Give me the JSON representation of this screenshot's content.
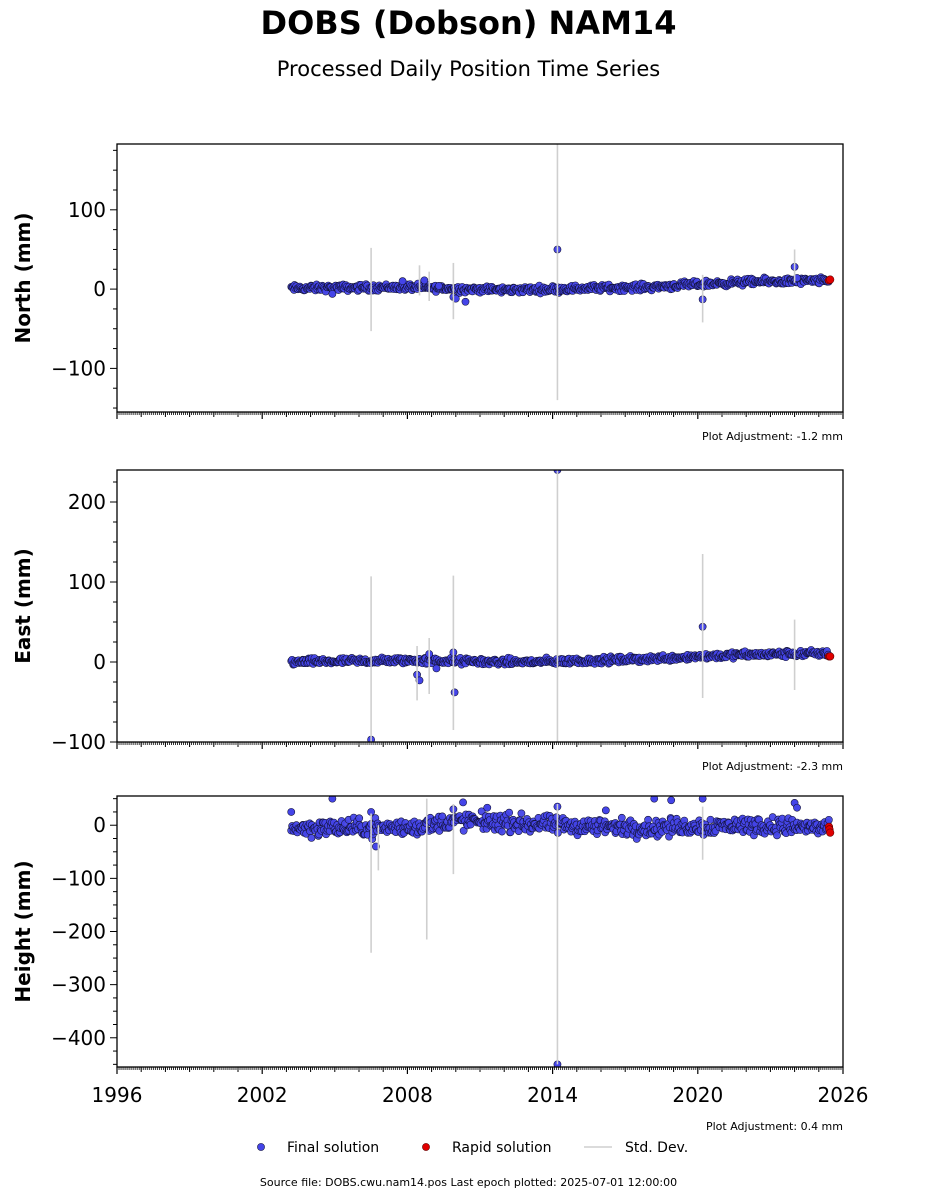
{
  "title": "DOBS (Dobson) NAM14",
  "subtitle": "Processed Daily Position Time Series",
  "footer": {
    "source_text": "Source file: DOBS.cwu.nam14.pos  Last epoch plotted: 2025-07-01 12:00:00"
  },
  "colors": {
    "final": "#4444e8",
    "rapid": "#e00000",
    "stddev": "#cfcfcf",
    "marker_edge": "#111133"
  },
  "chart_data": [
    {
      "type": "scatter",
      "component": "north",
      "ylabel": "North (mm)",
      "xlim": [
        1996,
        2026
      ],
      "ylim": [
        -155,
        183
      ],
      "yticks": [
        -100,
        0,
        100
      ],
      "xticks": [
        1996,
        2002,
        2008,
        2014,
        2020,
        2026
      ],
      "show_x_tick_labels": false,
      "adjustment_note": "Plot Adjustment: -1.2 mm",
      "final_trend": [
        [
          2003.2,
          1.0
        ],
        [
          2008.0,
          2.5
        ],
        [
          2010.0,
          0.5
        ],
        [
          2012.0,
          -1.0
        ],
        [
          2014.0,
          0.0
        ],
        [
          2016.0,
          1.5
        ],
        [
          2018.0,
          2.5
        ],
        [
          2020.0,
          6.0
        ],
        [
          2022.0,
          9.0
        ],
        [
          2025.4,
          10.5
        ]
      ],
      "scatter_amplitude": 3.5,
      "outliers": [
        [
          2004.9,
          -6
        ],
        [
          2007.8,
          10
        ],
        [
          2008.7,
          11
        ],
        [
          2009.3,
          4
        ],
        [
          2009.9,
          -10
        ],
        [
          2010.0,
          -12
        ],
        [
          2010.4,
          -16
        ],
        [
          2014.2,
          50
        ],
        [
          2020.2,
          -13
        ],
        [
          2024.0,
          28
        ],
        [
          2024.1,
          14
        ]
      ],
      "rapid_points": [
        [
          2025.42,
          11
        ],
        [
          2025.47,
          12
        ]
      ],
      "stddev_bars": [
        [
          2006.5,
          -53,
          52
        ],
        [
          2008.5,
          -8,
          30
        ],
        [
          2008.9,
          -15,
          22
        ],
        [
          2009.9,
          -38,
          33
        ],
        [
          2014.2,
          -140,
          183
        ],
        [
          2020.2,
          -42,
          18
        ],
        [
          2024.0,
          8,
          50
        ]
      ]
    },
    {
      "type": "scatter",
      "component": "east",
      "ylabel": "East (mm)",
      "xlim": [
        1996,
        2026
      ],
      "ylim": [
        -100,
        240
      ],
      "yticks": [
        -100,
        0,
        100,
        200
      ],
      "xticks": [
        1996,
        2002,
        2008,
        2014,
        2020,
        2026
      ],
      "show_x_tick_labels": false,
      "adjustment_note": "Plot Adjustment: -2.3 mm",
      "final_trend": [
        [
          2003.2,
          0.0
        ],
        [
          2008.0,
          2.0
        ],
        [
          2010.0,
          1.0
        ],
        [
          2012.0,
          0.0
        ],
        [
          2014.0,
          0.5
        ],
        [
          2016.0,
          2.0
        ],
        [
          2018.0,
          4.0
        ],
        [
          2020.0,
          7.0
        ],
        [
          2022.0,
          9.0
        ],
        [
          2025.4,
          11.0
        ]
      ],
      "scatter_amplitude": 3.5,
      "outliers": [
        [
          2006.5,
          -97
        ],
        [
          2008.4,
          -16
        ],
        [
          2008.5,
          -23
        ],
        [
          2008.9,
          10
        ],
        [
          2009.2,
          -8
        ],
        [
          2009.9,
          12
        ],
        [
          2009.95,
          -38
        ],
        [
          2014.2,
          240
        ],
        [
          2020.2,
          44
        ]
      ],
      "rapid_points": [
        [
          2025.42,
          7
        ],
        [
          2025.47,
          7
        ]
      ],
      "stddev_bars": [
        [
          2006.5,
          -100,
          107
        ],
        [
          2008.4,
          -48,
          20
        ],
        [
          2008.9,
          -40,
          30
        ],
        [
          2009.9,
          -85,
          108
        ],
        [
          2014.2,
          -100,
          240
        ],
        [
          2020.2,
          -45,
          135
        ],
        [
          2024.0,
          -35,
          53
        ]
      ]
    },
    {
      "type": "scatter",
      "component": "height",
      "ylabel": "Height (mm)",
      "xlim": [
        1996,
        2026
      ],
      "ylim": [
        -455,
        55
      ],
      "yticks": [
        -400,
        -300,
        -200,
        -100,
        0
      ],
      "xticks": [
        1996,
        2002,
        2008,
        2014,
        2020,
        2026
      ],
      "xtick_labels": [
        "1996",
        "2002",
        "2008",
        "2014",
        "2020",
        "2026"
      ],
      "show_x_tick_labels": true,
      "adjustment_note": "Plot Adjustment: 0.4 mm",
      "final_trend": [
        [
          2003.2,
          -5.0
        ],
        [
          2008.0,
          -5.0
        ],
        [
          2010.0,
          8.0
        ],
        [
          2012.0,
          5.0
        ],
        [
          2014.0,
          0.0
        ],
        [
          2016.0,
          -3.0
        ],
        [
          2018.0,
          -5.0
        ],
        [
          2020.0,
          -2.0
        ],
        [
          2022.0,
          0.0
        ],
        [
          2025.4,
          -5.0
        ]
      ],
      "scatter_amplitude": 14,
      "outliers": [
        [
          2003.2,
          25
        ],
        [
          2004.9,
          50
        ],
        [
          2006.5,
          25
        ],
        [
          2006.7,
          -40
        ],
        [
          2009.9,
          30
        ],
        [
          2010.3,
          43
        ],
        [
          2011.3,
          33
        ],
        [
          2014.2,
          35
        ],
        [
          2014.2,
          -450
        ],
        [
          2016.2,
          28
        ],
        [
          2018.2,
          50
        ],
        [
          2018.9,
          47
        ],
        [
          2020.2,
          50
        ],
        [
          2024.0,
          42
        ],
        [
          2024.1,
          33
        ]
      ],
      "rapid_points": [
        [
          2025.42,
          -3
        ],
        [
          2025.44,
          -8
        ],
        [
          2025.47,
          -14
        ]
      ],
      "stddev_bars": [
        [
          2006.5,
          -240,
          22
        ],
        [
          2006.8,
          -85,
          0
        ],
        [
          2008.8,
          -215,
          50
        ],
        [
          2009.9,
          -92,
          40
        ],
        [
          2014.2,
          -450,
          40
        ],
        [
          2020.2,
          -65,
          35
        ]
      ]
    }
  ],
  "legend": {
    "placement": "bottom-center",
    "entries": [
      {
        "label": "Final solution",
        "kind": "marker",
        "color": "#4444e8"
      },
      {
        "label": "Rapid solution",
        "kind": "marker",
        "color": "#e00000"
      },
      {
        "label": "Std. Dev.",
        "kind": "line",
        "color": "#cfcfcf"
      }
    ]
  }
}
